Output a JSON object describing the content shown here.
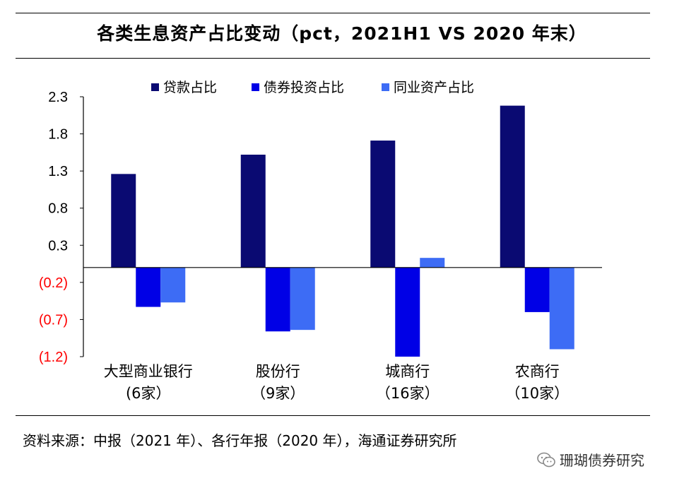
{
  "chart_data": {
    "type": "bar",
    "title": "各类生息资产占比变动（pct，2021H1 VS 2020 年末）",
    "categories": [
      {
        "line1": "大型商业银行",
        "line2": "(6家）"
      },
      {
        "line1": "股份行",
        "line2": "（9家）"
      },
      {
        "line1": "城商行",
        "line2": "（16家）"
      },
      {
        "line1": "农商行",
        "line2": "（10家）"
      }
    ],
    "series": [
      {
        "name": "贷款占比",
        "color": "#0a0a72",
        "values": [
          1.26,
          1.52,
          1.71,
          2.18
        ]
      },
      {
        "name": "债券投资占比",
        "color": "#0000e6",
        "values": [
          -0.53,
          -0.86,
          -1.2,
          -0.6
        ]
      },
      {
        "name": "同业资产占比",
        "color": "#3d6cf5",
        "values": [
          -0.47,
          -0.84,
          0.13,
          -1.1
        ]
      }
    ],
    "yticks": [
      "2.3",
      "1.8",
      "1.3",
      "0.8",
      "0.3",
      "(0.2)",
      "(0.7)",
      "(1.2)"
    ],
    "ytick_values": [
      2.3,
      1.8,
      1.3,
      0.8,
      0.3,
      -0.2,
      -0.7,
      -1.2
    ],
    "ylim": [
      -1.2,
      2.3
    ],
    "negative_tick_color": "#ff0000",
    "xlabel": "",
    "ylabel": "",
    "legend_position": "top"
  },
  "source": "资料来源：中报（2021 年）、各行年报（2020 年），海通证券研究所",
  "watermark": "珊瑚债券研究"
}
